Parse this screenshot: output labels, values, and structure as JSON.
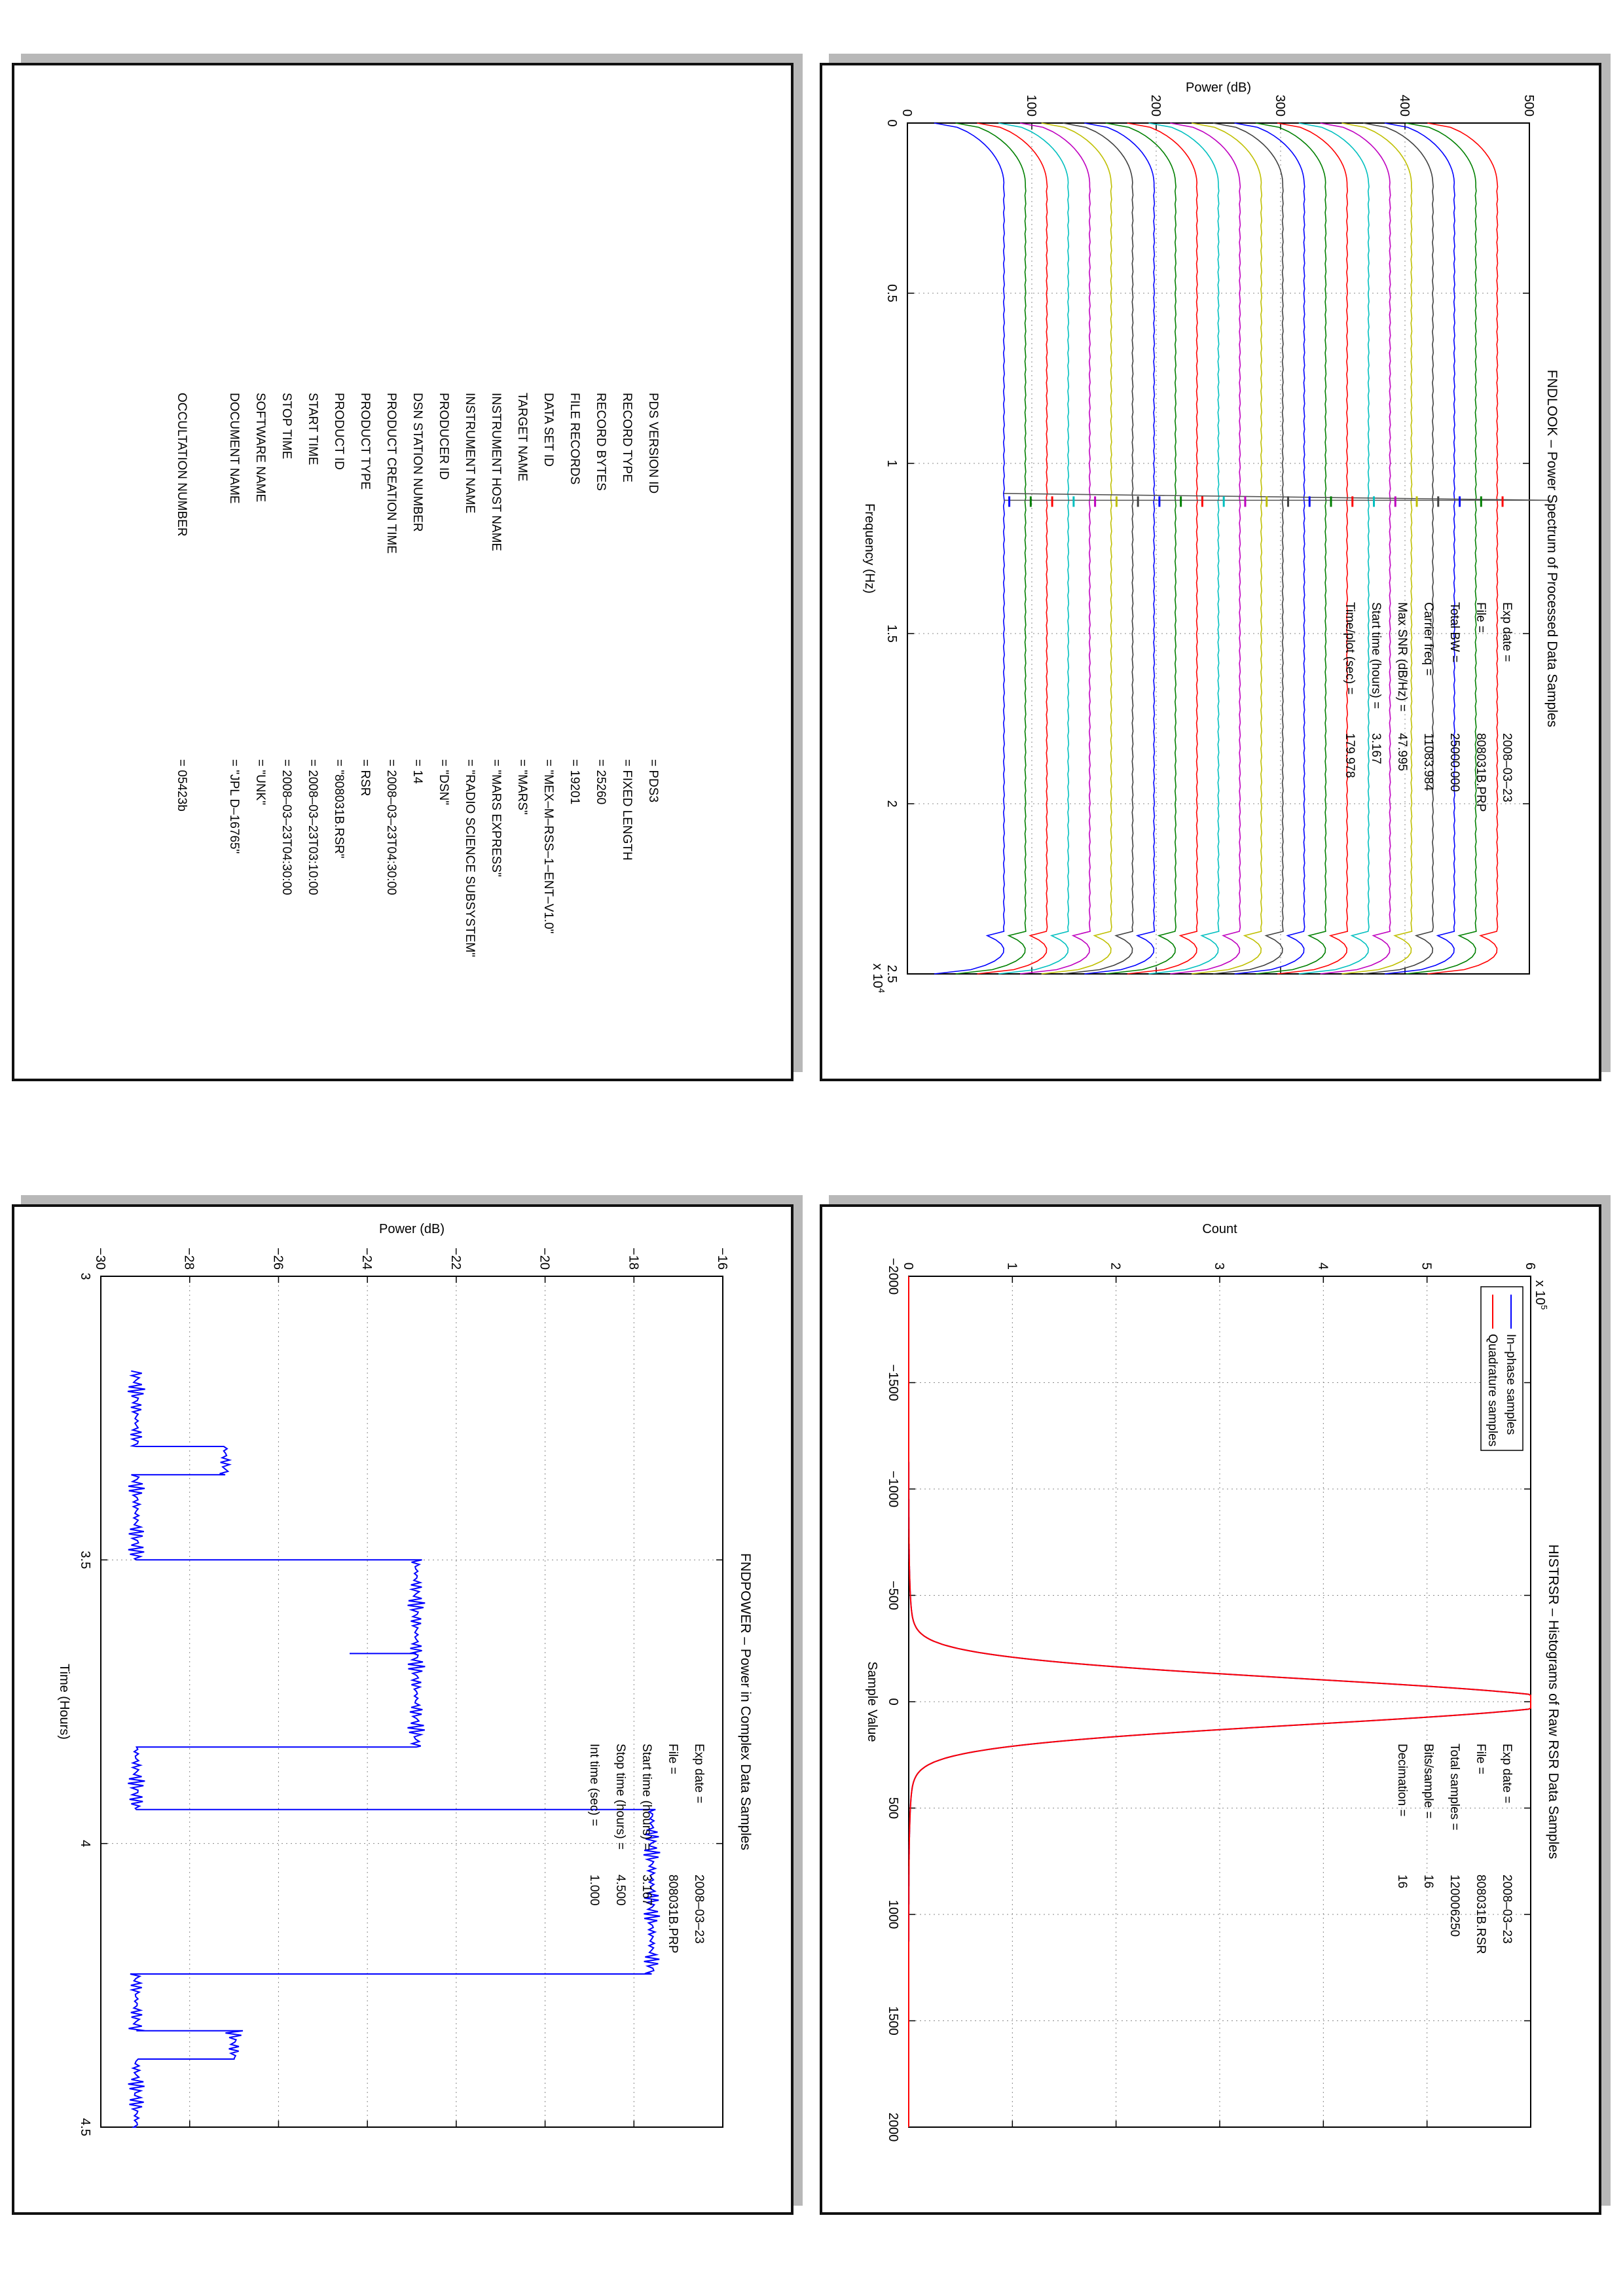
{
  "panels": {
    "findlook": {
      "title": "FNDLOOK – Power Spectrum of Processed Data Samples",
      "xlabel": "Frequency (Hz)",
      "ylabel": "Power (dB)",
      "xexponent": "x 10",
      "xexponent_sup": "4",
      "xticks": [
        "0",
        "0.5",
        "1",
        "1.5",
        "2",
        "2.5"
      ],
      "yticks": [
        "0",
        "100",
        "200",
        "300",
        "400",
        "500"
      ],
      "info": [
        {
          "key": "Exp date = ",
          "val": "2008–03–23"
        },
        {
          "key": "File = ",
          "val": "808031B.PRP"
        },
        {
          "key": "Total BW =",
          "val": "25000.000"
        },
        {
          "key": "Carrier freq =",
          "val": "11083.984"
        },
        {
          "key": "Max SNR (dB/Hz) =",
          "val": "47.995"
        },
        {
          "key": "Start time (hours) =",
          "val": "3.167"
        },
        {
          "key": "Time/plot (sec) =",
          "val": "179.978"
        }
      ]
    },
    "histrsr": {
      "title": "HISTRSR – Histograms of Raw RSR Data Samples",
      "xlabel": "Sample Value",
      "ylabel": "Count",
      "yexponent": "x 10",
      "yexponent_sup": "5",
      "xticks": [
        "−2000",
        "−1500",
        "−1000",
        "−500",
        "0",
        "500",
        "1000",
        "1500",
        "2000"
      ],
      "yticks": [
        "0",
        "1",
        "2",
        "3",
        "4",
        "5",
        "6"
      ],
      "legend": [
        "In–phase samples",
        "Quadrature samples"
      ],
      "info": [
        {
          "key": "Exp date = ",
          "val": "2008–03–23"
        },
        {
          "key": "File = ",
          "val": "808031B.RSR"
        },
        {
          "key": "Total samples =",
          "val": "120006250"
        },
        {
          "key": "Bits/sample   =",
          "val": "16"
        },
        {
          "key": "Decimation    =",
          "val": "16"
        }
      ]
    },
    "fndpower": {
      "title": "FNDPOWER – Power in Complex Data Samples",
      "xlabel": "Time (Hours)",
      "ylabel": "Power (dB)",
      "xticks": [
        "3",
        "3.5",
        "4",
        "4.5"
      ],
      "yticks": [
        "−30",
        "−28",
        "−26",
        "−24",
        "−22",
        "−20",
        "−18",
        "−16"
      ],
      "info": [
        {
          "key": "Exp date = ",
          "val": "2008–03–23"
        },
        {
          "key": "File = ",
          "val": "808031B.PRP"
        },
        {
          "key": "Start time (hours) =",
          "val": "3.167"
        },
        {
          "key": "Stop time (hours) =",
          "val": "4.500"
        },
        {
          "key": "Int time (sec) =",
          "val": "1.000"
        }
      ]
    }
  },
  "label": {
    "rows": [
      {
        "key": "PDS VERSION ID",
        "val": "=  PDS3"
      },
      {
        "key": "RECORD TYPE",
        "val": "=  FIXED LENGTH"
      },
      {
        "key": "RECORD BYTES",
        "val": "=  25260"
      },
      {
        "key": "FILE RECORDS",
        "val": "=  19201"
      },
      {
        "key": "DATA SET ID",
        "val": "=  \"MEX–M–RSS–1–ENT–V1.0\""
      },
      {
        "key": "TARGET NAME",
        "val": "=  \"MARS\""
      },
      {
        "key": "INSTRUMENT HOST NAME",
        "val": "=  \"MARS EXPRESS\""
      },
      {
        "key": "INSTRUMENT NAME",
        "val": "=  \"RADIO SCIENCE SUBSYSTEM\""
      },
      {
        "key": "PRODUCER ID",
        "val": "=  \"DSN\""
      },
      {
        "key": "DSN STATION NUMBER",
        "val": "=  14"
      },
      {
        "key": "PRODUCT CREATION TIME",
        "val": "=  2008–03–23T04:30:00"
      },
      {
        "key": "PRODUCT TYPE",
        "val": "=  RSR"
      },
      {
        "key": "PRODUCT ID",
        "val": "=  \"808031B.RSR\""
      },
      {
        "key": "START TIME",
        "val": "=  2008–03–23T03:10:00"
      },
      {
        "key": "STOP TIME",
        "val": "=  2008–03–23T04:30:00"
      },
      {
        "key": "SOFTWARE NAME",
        "val": "=  \"UNK\""
      },
      {
        "key": "DOCUMENT NAME",
        "val": "=  \"JPL D–16765\""
      },
      {
        "key": "",
        "val": ""
      },
      {
        "key": "OCCULTATION NUMBER",
        "val": "=  05423b"
      }
    ]
  },
  "colors": {
    "blue": "#0000ff",
    "red": "#ff0000",
    "green": "#008000",
    "cyan": "#00bfbf",
    "magenta": "#bf00bf",
    "olive": "#bfbf00",
    "dark": "#404040"
  },
  "chart_data": [
    {
      "type": "line",
      "title": "FNDLOOK – Power Spectrum of Processed Data Samples",
      "xlabel": "Frequency (Hz)",
      "ylabel": "Power (dB)",
      "xlim": [
        0,
        25000
      ],
      "ylim": [
        -60,
        520
      ],
      "grid": true,
      "series_count": 24,
      "baseline_offsets": [
        10,
        30,
        50,
        70,
        90,
        110,
        130,
        150,
        170,
        190,
        210,
        230,
        250,
        270,
        290,
        310,
        330,
        350,
        370,
        390,
        410,
        430,
        450,
        470
      ],
      "plateau_level": 20,
      "rolloff_start_hz": 1000,
      "rolloff_end_hz": 24500,
      "carrier_peak_hz": 11083.984
    },
    {
      "type": "line",
      "title": "HISTRSR – Histograms of Raw RSR Data Samples",
      "xlabel": "Sample Value",
      "ylabel": "Count",
      "xlim": [
        -2000,
        2000
      ],
      "ylim": [
        0,
        600000
      ],
      "grid": true,
      "legend_position": "top-left",
      "series": [
        {
          "name": "In–phase samples",
          "peak": 600000,
          "center": 0,
          "halfwidth": 85
        },
        {
          "name": "Quadrature samples",
          "peak": 600000,
          "center": 0,
          "halfwidth": 85
        }
      ]
    },
    {
      "type": "line",
      "title": "FNDPOWER – Power in Complex Data Samples",
      "xlabel": "Time (Hours)",
      "ylabel": "Power (dB)",
      "xlim": [
        3,
        4.5
      ],
      "ylim": [
        -30,
        -16
      ],
      "grid": true,
      "series": [
        {
          "name": "",
          "x": [
            3.167,
            3.3,
            3.3,
            3.35,
            3.35,
            3.5,
            3.5,
            3.83,
            3.83,
            3.94,
            3.94,
            4.23,
            4.23,
            4.33,
            4.33,
            4.38,
            4.38,
            4.5
          ],
          "y": [
            -29.2,
            -29.2,
            -27.2,
            -27.2,
            -29.2,
            -29.2,
            -22.9,
            -22.9,
            -29.2,
            -29.2,
            -17.6,
            -17.6,
            -29.2,
            -29.2,
            -27.0,
            -27.0,
            -29.2,
            -29.2
          ]
        }
      ]
    }
  ]
}
